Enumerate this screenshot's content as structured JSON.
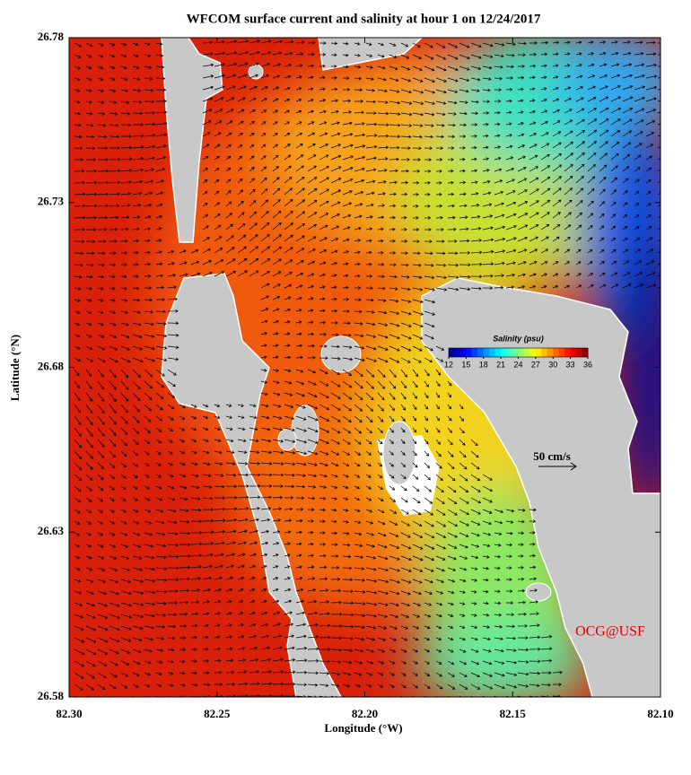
{
  "chart_data": {
    "type": "map",
    "title": "WFCOM surface current and salinity at hour 1 on 12/24/2017",
    "xlabel": "Longitude (°W)",
    "ylabel": "Latitude (°N)",
    "xlim": [
      82.3,
      82.1
    ],
    "ylim": [
      26.58,
      26.78
    ],
    "xticks": [
      {
        "value": 82.3,
        "label": "82.30"
      },
      82.25,
      {
        "value": 82.2,
        "label": "82.20"
      },
      82.15,
      {
        "value": 82.1,
        "label": "82.10"
      }
    ],
    "yticks": [
      26.58,
      26.63,
      26.68,
      26.73,
      26.78
    ],
    "colorbar": {
      "title": "Salinity (psu)",
      "lim": [
        12,
        36
      ],
      "ticks": [
        12,
        15,
        18,
        21,
        24,
        27,
        30,
        33,
        36
      ],
      "colormap": "jet"
    },
    "scale_label": "50 cm/s",
    "credit": "OCG@USF"
  }
}
